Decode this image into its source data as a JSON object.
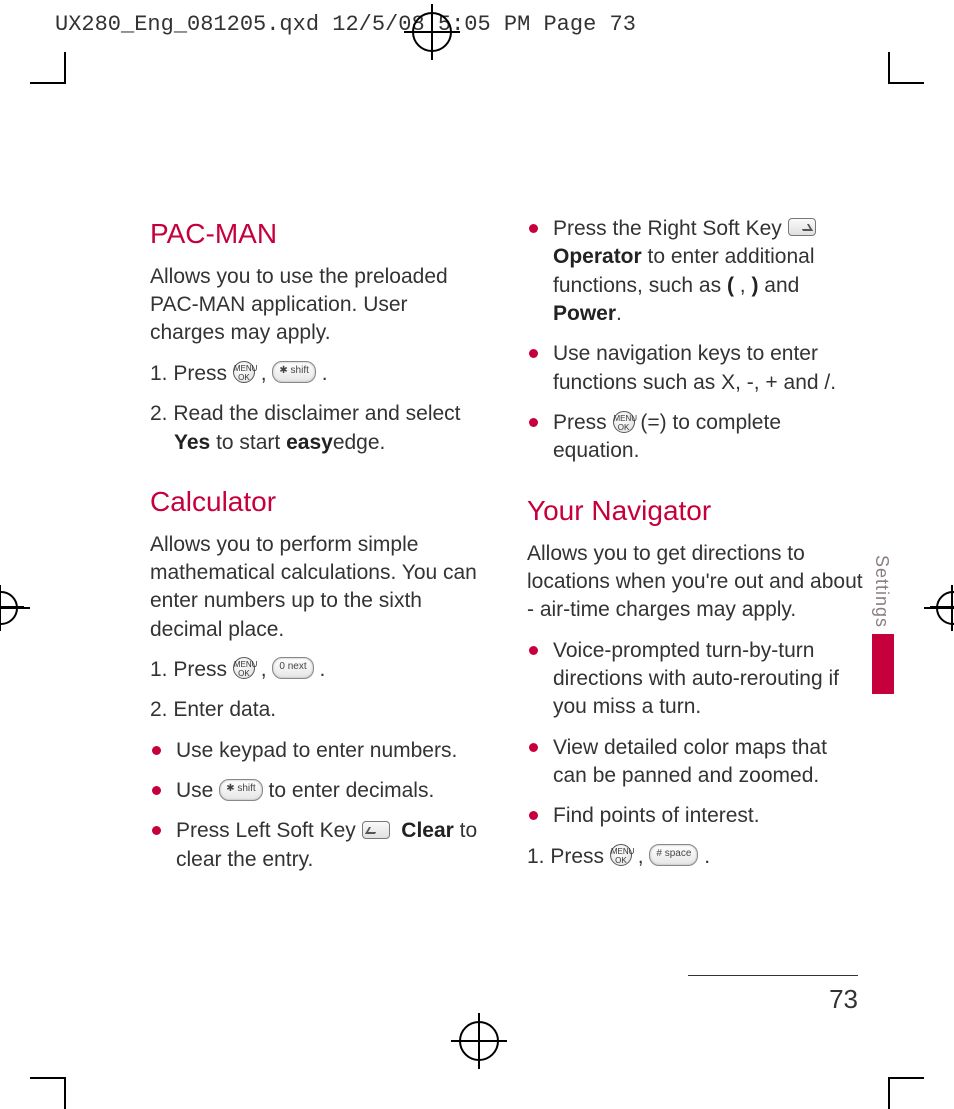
{
  "header": "UX280_Eng_081205.qxd  12/5/08  5:05 PM  Page 73",
  "side_label": "Settings",
  "page_number": "73",
  "accent_color": "#c6003d",
  "sec1": {
    "title": "PAC-MAN",
    "intro": "Allows you to use the preloaded PAC-MAN application. User charges may apply.",
    "s1a": "1. Press ",
    "s1b": " , ",
    "s1c": " .",
    "s2a": "2. Read the disclaimer and select",
    "s2b": "Yes",
    "s2c": " to start ",
    "s2d": "easy",
    "s2e": "edge."
  },
  "sec2": {
    "title": "Calculator",
    "intro": "Allows you to perform simple mathematical calculations. You can enter numbers up to the sixth decimal place.",
    "s1a": "1. Press ",
    "s1b": " , ",
    "s1c": " .",
    "s2": "2. Enter data.",
    "b1": "Use keypad to enter numbers.",
    "b2a": "Use ",
    "b2b": " to enter decimals.",
    "b3a": "Press Left Soft Key ",
    "b3b": "Clear",
    "b3c": "to clear the entry.",
    "b4a": "Press the Right Soft Key ",
    "b4b": "Operator",
    "b4c": " to enter additional functions, such as ",
    "b4d": "(",
    "b4e": ", ",
    "b4f": ")",
    "b4g": " and ",
    "b4h": "Power",
    "b4i": ".",
    "b5": "Use navigation keys to enter functions such as X, -, + and /.",
    "b6a": "Press ",
    "b6b": " (=) to complete equation."
  },
  "sec3": {
    "title": "Your Navigator",
    "intro": "Allows you to get directions to locations when you're out and about - air-time charges may apply.",
    "b1": "Voice-prompted turn-by-turn directions with auto-rerouting if you miss a turn.",
    "b2": "View detailed color maps that can be panned and zoomed.",
    "b3": "Find points of interest.",
    "s1a": "1. Press ",
    "s1b": " , ",
    "s1c": " ."
  },
  "keys": {
    "ok": "MENU\nOK",
    "star": "✱ shift",
    "zero": "0 next",
    "hash": "# space"
  }
}
